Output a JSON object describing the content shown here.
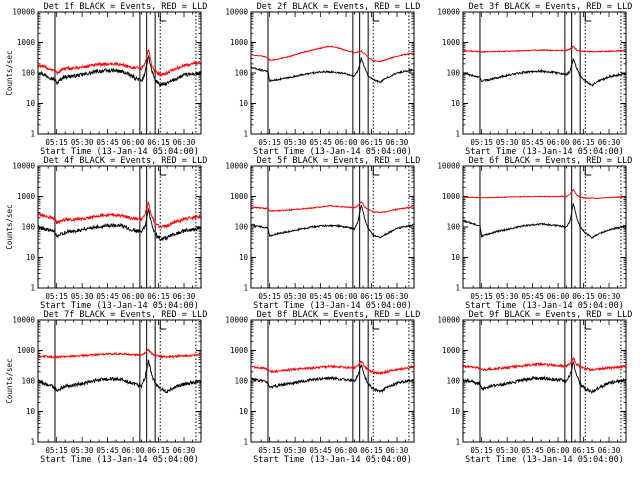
{
  "colors": {
    "events": "#000000",
    "lld": "#ff0000",
    "axes": "#000000",
    "background": "#ffffff"
  },
  "chart_data": [
    {
      "type": "line",
      "title": "Det 1f BLACK = Events, RED = LLD",
      "xlabel": "Start Time (13-Jan-14 05:04:00)",
      "ylabel": "Counts/sec",
      "yscale": "log",
      "ylim": [
        1,
        10000
      ],
      "ytick_labels": [
        "1",
        "10",
        "100",
        "1000",
        "10000"
      ],
      "xtick_labels": [
        "05:15",
        "05:30",
        "05:45",
        "06:00",
        "06:15",
        "06:30"
      ],
      "x_knots": [
        "05:04",
        "05:14",
        "05:15",
        "05:19",
        "05:26",
        "05:33",
        "05:40",
        "05:47",
        "05:50",
        "05:54",
        "06:00",
        "06:05",
        "06:07",
        "06:09",
        "06:11",
        "06:13",
        "06:16",
        "06:20",
        "06:24",
        "06:30",
        "06:40"
      ],
      "series": [
        {
          "name": "Events",
          "color": "#000000",
          "values": [
            110,
            60,
            45,
            75,
            80,
            95,
            115,
            120,
            118,
            110,
            75,
            55,
            90,
            380,
            120,
            60,
            40,
            45,
            60,
            85,
            100
          ]
        },
        {
          "name": "LLD",
          "color": "#ff0000",
          "values": [
            180,
            120,
            100,
            135,
            145,
            165,
            190,
            200,
            195,
            185,
            150,
            140,
            200,
            600,
            180,
            110,
            90,
            100,
            130,
            175,
            230
          ]
        }
      ],
      "events_volatility": 0.14,
      "lld_volatility": 0.12
    },
    {
      "type": "line",
      "title": "Det 2f BLACK = Events, RED = LLD",
      "xlabel": "Start Time (13-Jan-14 05:04:00)",
      "ylabel": "",
      "yscale": "log",
      "ylim": [
        1,
        10000
      ],
      "ytick_labels": [
        "1",
        "10",
        "100",
        "1000",
        "10000"
      ],
      "xtick_labels": [
        "05:15",
        "05:30",
        "05:45",
        "06:00",
        "06:15",
        "06:30"
      ],
      "x_knots": [
        "05:04",
        "05:14",
        "05:15",
        "05:19",
        "05:26",
        "05:33",
        "05:40",
        "05:47",
        "05:50",
        "05:54",
        "06:00",
        "06:05",
        "06:07",
        "06:09",
        "06:11",
        "06:13",
        "06:16",
        "06:20",
        "06:24",
        "06:30",
        "06:40"
      ],
      "series": [
        {
          "name": "Events",
          "color": "#000000",
          "values": [
            150,
            110,
            55,
            60,
            70,
            85,
            100,
            110,
            110,
            105,
            95,
            80,
            120,
            300,
            150,
            80,
            60,
            50,
            70,
            100,
            130
          ]
        },
        {
          "name": "LLD",
          "color": "#ff0000",
          "values": [
            400,
            330,
            260,
            280,
            340,
            450,
            560,
            700,
            750,
            700,
            550,
            450,
            500,
            520,
            420,
            330,
            250,
            240,
            280,
            360,
            450
          ]
        }
      ],
      "events_volatility": 0.06,
      "lld_volatility": 0.04
    },
    {
      "type": "line",
      "title": "Det 3f BLACK = Events, RED = LLD",
      "xlabel": "Start Time (13-Jan-14 05:04:00)",
      "ylabel": "",
      "yscale": "log",
      "ylim": [
        1,
        10000
      ],
      "ytick_labels": [
        "1",
        "10",
        "100",
        "1000",
        "10000"
      ],
      "xtick_labels": [
        "05:15",
        "05:30",
        "05:45",
        "06:00",
        "06:15",
        "06:30"
      ],
      "x_knots": [
        "05:04",
        "05:14",
        "05:15",
        "05:19",
        "05:26",
        "05:33",
        "05:40",
        "05:47",
        "05:50",
        "05:54",
        "06:00",
        "06:05",
        "06:07",
        "06:09",
        "06:11",
        "06:13",
        "06:16",
        "06:20",
        "06:24",
        "06:30",
        "06:40"
      ],
      "series": [
        {
          "name": "Events",
          "color": "#000000",
          "values": [
            100,
            70,
            55,
            60,
            75,
            90,
            105,
            115,
            115,
            110,
            100,
            90,
            110,
            300,
            140,
            80,
            55,
            40,
            55,
            75,
            100
          ]
        },
        {
          "name": "LLD",
          "color": "#ff0000",
          "values": [
            530,
            500,
            490,
            500,
            510,
            520,
            540,
            560,
            560,
            560,
            550,
            550,
            600,
            750,
            560,
            530,
            510,
            500,
            500,
            520,
            540
          ]
        }
      ],
      "events_volatility": 0.07,
      "lld_volatility": 0.04
    },
    {
      "type": "line",
      "title": "Det 4f BLACK = Events, RED = LLD",
      "xlabel": "Start Time (13-Jan-14 05:04:00)",
      "ylabel": "Counts/sec",
      "yscale": "log",
      "ylim": [
        1,
        10000
      ],
      "ytick_labels": [
        "1",
        "10",
        "100",
        "1000",
        "10000"
      ],
      "xtick_labels": [
        "05:15",
        "05:30",
        "05:45",
        "06:00",
        "06:15",
        "06:30"
      ],
      "x_knots": [
        "05:04",
        "05:14",
        "05:15",
        "05:19",
        "05:26",
        "05:33",
        "05:40",
        "05:47",
        "05:50",
        "05:54",
        "06:00",
        "06:05",
        "06:07",
        "06:09",
        "06:11",
        "06:13",
        "06:16",
        "06:20",
        "06:24",
        "06:30",
        "06:40"
      ],
      "series": [
        {
          "name": "Events",
          "color": "#000000",
          "values": [
            100,
            70,
            45,
            65,
            75,
            90,
            105,
            115,
            112,
            108,
            80,
            70,
            100,
            400,
            120,
            60,
            40,
            45,
            55,
            75,
            90
          ]
        },
        {
          "name": "LLD",
          "color": "#ff0000",
          "values": [
            260,
            190,
            140,
            170,
            180,
            200,
            230,
            250,
            245,
            230,
            190,
            180,
            250,
            650,
            220,
            130,
            100,
            110,
            140,
            180,
            230
          ]
        }
      ],
      "events_volatility": 0.14,
      "lld_volatility": 0.12
    },
    {
      "type": "line",
      "title": "Det 5f BLACK = Events, RED = LLD",
      "xlabel": "Start Time (13-Jan-14 05:04:00)",
      "ylabel": "",
      "yscale": "log",
      "ylim": [
        1,
        10000
      ],
      "ytick_labels": [
        "1",
        "10",
        "100",
        "1000",
        "10000"
      ],
      "xtick_labels": [
        "05:15",
        "05:30",
        "05:45",
        "06:00",
        "06:15",
        "06:30"
      ],
      "x_knots": [
        "05:04",
        "05:14",
        "05:15",
        "05:19",
        "05:26",
        "05:33",
        "05:40",
        "05:47",
        "05:50",
        "05:54",
        "06:00",
        "06:05",
        "06:07",
        "06:09",
        "06:11",
        "06:13",
        "06:16",
        "06:20",
        "06:24",
        "06:30",
        "06:40"
      ],
      "series": [
        {
          "name": "Events",
          "color": "#000000",
          "values": [
            120,
            90,
            50,
            60,
            70,
            85,
            100,
            110,
            112,
            110,
            100,
            85,
            150,
            550,
            180,
            90,
            55,
            45,
            60,
            90,
            120
          ]
        },
        {
          "name": "LLD",
          "color": "#ff0000",
          "values": [
            450,
            400,
            330,
            340,
            360,
            390,
            420,
            470,
            500,
            480,
            450,
            430,
            500,
            700,
            450,
            380,
            320,
            300,
            320,
            380,
            460
          ]
        }
      ],
      "events_volatility": 0.06,
      "lld_volatility": 0.04
    },
    {
      "type": "line",
      "title": "Det 6f BLACK = Events, RED = LLD",
      "xlabel": "Start Time (13-Jan-14 05:04:00)",
      "ylabel": "",
      "yscale": "log",
      "ylim": [
        1,
        10000
      ],
      "ytick_labels": [
        "1",
        "10",
        "100",
        "1000",
        "10000"
      ],
      "xtick_labels": [
        "05:15",
        "05:30",
        "05:45",
        "06:00",
        "06:15",
        "06:30"
      ],
      "x_knots": [
        "05:04",
        "05:14",
        "05:15",
        "05:19",
        "05:26",
        "05:33",
        "05:40",
        "05:47",
        "05:50",
        "05:54",
        "06:00",
        "06:05",
        "06:07",
        "06:09",
        "06:11",
        "06:13",
        "06:16",
        "06:20",
        "06:24",
        "06:30",
        "06:40"
      ],
      "series": [
        {
          "name": "Events",
          "color": "#000000",
          "values": [
            160,
            110,
            50,
            60,
            75,
            90,
            110,
            120,
            125,
            120,
            110,
            100,
            150,
            600,
            200,
            100,
            65,
            45,
            60,
            80,
            110
          ]
        },
        {
          "name": "LLD",
          "color": "#ff0000",
          "values": [
            950,
            920,
            900,
            920,
            940,
            970,
            990,
            1000,
            1000,
            1000,
            1000,
            1000,
            1200,
            1700,
            1100,
            950,
            900,
            880,
            880,
            920,
            980
          ]
        }
      ],
      "events_volatility": 0.06,
      "lld_volatility": 0.03
    },
    {
      "type": "line",
      "title": "Det 7f BLACK = Events, RED = LLD",
      "xlabel": "Start Time (13-Jan-14 05:04:00)",
      "ylabel": "Counts/sec",
      "yscale": "log",
      "ylim": [
        1,
        10000
      ],
      "ytick_labels": [
        "1",
        "10",
        "100",
        "1000",
        "10000"
      ],
      "xtick_labels": [
        "05:15",
        "05:30",
        "05:45",
        "06:00",
        "06:15",
        "06:30"
      ],
      "x_knots": [
        "05:04",
        "05:14",
        "05:15",
        "05:19",
        "05:26",
        "05:33",
        "05:40",
        "05:47",
        "05:50",
        "05:54",
        "06:00",
        "06:05",
        "06:07",
        "06:09",
        "06:11",
        "06:13",
        "06:16",
        "06:20",
        "06:24",
        "06:30",
        "06:40"
      ],
      "series": [
        {
          "name": "Events",
          "color": "#000000",
          "values": [
            100,
            60,
            45,
            65,
            75,
            90,
            110,
            120,
            115,
            110,
            80,
            70,
            120,
            450,
            160,
            80,
            55,
            45,
            60,
            80,
            100
          ]
        },
        {
          "name": "LLD",
          "color": "#ff0000",
          "values": [
            650,
            620,
            600,
            640,
            660,
            700,
            740,
            780,
            780,
            770,
            720,
            700,
            800,
            1050,
            800,
            700,
            640,
            620,
            640,
            670,
            720
          ]
        }
      ],
      "events_volatility": 0.13,
      "lld_volatility": 0.07
    },
    {
      "type": "line",
      "title": "Det 8f BLACK = Events, RED = LLD",
      "xlabel": "Start Time (13-Jan-14 05:04:00)",
      "ylabel": "",
      "yscale": "log",
      "ylim": [
        1,
        10000
      ],
      "ytick_labels": [
        "1",
        "10",
        "100",
        "1000",
        "10000"
      ],
      "xtick_labels": [
        "05:15",
        "05:30",
        "05:45",
        "06:00",
        "06:15",
        "06:30"
      ],
      "x_knots": [
        "05:04",
        "05:14",
        "05:15",
        "05:19",
        "05:26",
        "05:33",
        "05:40",
        "05:47",
        "05:50",
        "05:54",
        "06:00",
        "06:05",
        "06:07",
        "06:09",
        "06:11",
        "06:13",
        "06:16",
        "06:20",
        "06:24",
        "06:30",
        "06:40"
      ],
      "series": [
        {
          "name": "Events",
          "color": "#000000",
          "values": [
            120,
            90,
            60,
            70,
            80,
            95,
            110,
            120,
            125,
            120,
            110,
            100,
            150,
            350,
            140,
            80,
            55,
            45,
            60,
            85,
            110
          ]
        },
        {
          "name": "LLD",
          "color": "#ff0000",
          "values": [
            300,
            250,
            200,
            210,
            230,
            250,
            270,
            290,
            300,
            300,
            280,
            270,
            320,
            450,
            300,
            230,
            190,
            180,
            200,
            240,
            290
          ]
        }
      ],
      "events_volatility": 0.1,
      "lld_volatility": 0.08
    },
    {
      "type": "line",
      "title": "Det 9f BLACK = Events, RED = LLD",
      "xlabel": "Start Time (13-Jan-14 05:04:00)",
      "ylabel": "",
      "yscale": "log",
      "ylim": [
        1,
        10000
      ],
      "ytick_labels": [
        "1",
        "10",
        "100",
        "1000",
        "10000"
      ],
      "xtick_labels": [
        "05:15",
        "05:30",
        "05:45",
        "06:00",
        "06:15",
        "06:30"
      ],
      "x_knots": [
        "05:04",
        "05:14",
        "05:15",
        "05:19",
        "05:26",
        "05:33",
        "05:40",
        "05:47",
        "05:50",
        "05:54",
        "06:00",
        "06:05",
        "06:07",
        "06:09",
        "06:11",
        "06:13",
        "06:16",
        "06:20",
        "06:24",
        "06:30",
        "06:40"
      ],
      "series": [
        {
          "name": "Events",
          "color": "#000000",
          "values": [
            110,
            80,
            55,
            65,
            75,
            90,
            110,
            125,
            125,
            120,
            110,
            100,
            150,
            400,
            150,
            80,
            55,
            45,
            60,
            85,
            110
          ]
        },
        {
          "name": "LLD",
          "color": "#ff0000",
          "values": [
            300,
            270,
            230,
            240,
            260,
            290,
            320,
            350,
            350,
            340,
            320,
            310,
            380,
            550,
            360,
            290,
            250,
            240,
            250,
            270,
            300
          ]
        }
      ],
      "events_volatility": 0.12,
      "lld_volatility": 0.09
    }
  ]
}
